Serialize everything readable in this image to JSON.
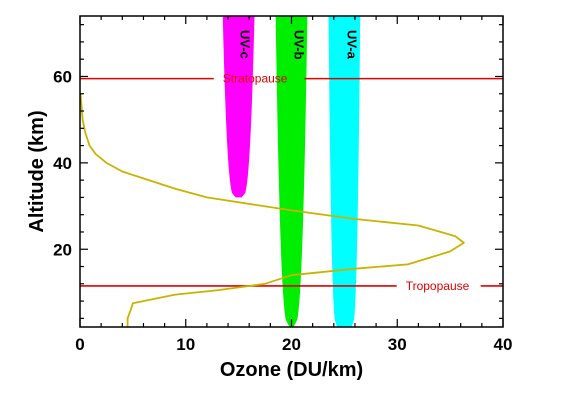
{
  "chart_data": {
    "type": "line",
    "xlabel": "Ozone (DU/km)",
    "ylabel": "Altitude (km)",
    "xlim": [
      0,
      40
    ],
    "ylim": [
      2,
      74
    ],
    "x_ticks": [
      0,
      10,
      20,
      30,
      40
    ],
    "y_ticks": [
      20,
      40,
      60
    ],
    "x_minor_step": 2,
    "y_minor_step": 4,
    "grid": false,
    "ozone_profile": {
      "color": "#c8b400",
      "points": [
        {
          "x": 4.5,
          "y": 2
        },
        {
          "x": 4.5,
          "y": 4
        },
        {
          "x": 4.8,
          "y": 6
        },
        {
          "x": 5.0,
          "y": 7.5
        },
        {
          "x": 9,
          "y": 9.5
        },
        {
          "x": 13,
          "y": 10.5
        },
        {
          "x": 17.5,
          "y": 12
        },
        {
          "x": 20,
          "y": 14
        },
        {
          "x": 26,
          "y": 15.5
        },
        {
          "x": 31,
          "y": 16.5
        },
        {
          "x": 35,
          "y": 19.5
        },
        {
          "x": 36.3,
          "y": 21.5
        },
        {
          "x": 35.5,
          "y": 23
        },
        {
          "x": 32,
          "y": 25.5
        },
        {
          "x": 26,
          "y": 27
        },
        {
          "x": 20,
          "y": 29
        },
        {
          "x": 12,
          "y": 32
        },
        {
          "x": 9,
          "y": 34
        },
        {
          "x": 6.5,
          "y": 36
        },
        {
          "x": 4,
          "y": 38
        },
        {
          "x": 2.5,
          "y": 40
        },
        {
          "x": 1.5,
          "y": 42
        },
        {
          "x": 0.9,
          "y": 44
        },
        {
          "x": 0.5,
          "y": 47
        },
        {
          "x": 0.25,
          "y": 50
        },
        {
          "x": 0.15,
          "y": 53
        },
        {
          "x": 0.05,
          "y": 56
        }
      ]
    },
    "reference_lines": [
      {
        "label": "Stratopause",
        "y": 59.5,
        "color": "#e00000",
        "label_x": 13.5
      },
      {
        "label": "Tropopause",
        "y": 11.5,
        "color": "#e00000",
        "label_x": 30.8
      }
    ],
    "uv_bands": [
      {
        "name": "UV-c",
        "color": "#ff00ff",
        "center": 15,
        "top_half_width": 1.5,
        "bottom_half_width": 0.3,
        "y_min": 32,
        "y_max": 74,
        "label_x": 15.2
      },
      {
        "name": "UV-b",
        "color": "#00ee00",
        "center": 20,
        "top_half_width": 1.5,
        "bottom_half_width": 0.2,
        "y_min": 2,
        "y_max": 74,
        "label_x": 20.3
      },
      {
        "name": "UV-a",
        "color": "#00ffff",
        "center": 25,
        "top_half_width": 1.5,
        "bottom_half_width": 0.7,
        "y_min": 2,
        "y_max": 74,
        "label_x": 25.3
      }
    ]
  }
}
